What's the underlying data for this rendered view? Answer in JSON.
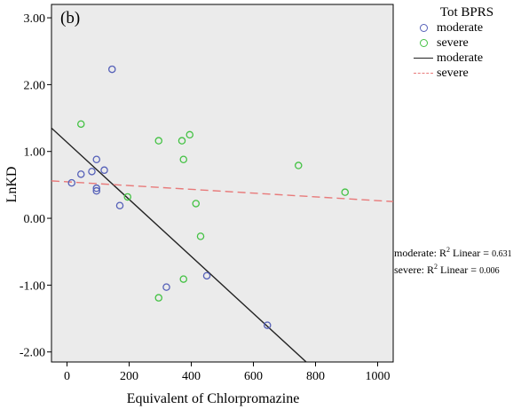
{
  "chart_data": {
    "type": "scatter",
    "panel_label": "(b)",
    "xlabel": "Equivalent of Chlorpromazine",
    "ylabel": "LnKD",
    "xlim": [
      -50,
      1050
    ],
    "ylim": [
      -2.15,
      3.2
    ],
    "x_ticks": [
      0,
      200,
      400,
      600,
      800,
      1000
    ],
    "x_tick_labels": [
      "0",
      "200",
      "400",
      "600",
      "800",
      "1000"
    ],
    "y_ticks": [
      3,
      2,
      1,
      0,
      -1,
      -2
    ],
    "y_tick_labels": [
      "3.00",
      "2.00",
      "1.00",
      "0.00",
      "-1.00",
      "-2.00"
    ],
    "grid": false,
    "legend_title": "Tot BPRS",
    "legend_position": "outside-right",
    "series": [
      {
        "name": "moderate",
        "kind": "points",
        "marker": "circle",
        "color": "#5560b8",
        "points": [
          [
            15,
            0.53
          ],
          [
            45,
            0.66
          ],
          [
            80,
            0.7
          ],
          [
            95,
            0.88
          ],
          [
            95,
            0.45
          ],
          [
            95,
            0.41
          ],
          [
            120,
            0.72
          ],
          [
            145,
            2.23
          ],
          [
            170,
            0.19
          ],
          [
            320,
            -1.03
          ],
          [
            450,
            -0.86
          ],
          [
            645,
            -1.6
          ]
        ]
      },
      {
        "name": "severe",
        "kind": "points",
        "marker": "circle",
        "color": "#44c244",
        "points": [
          [
            45,
            1.41
          ],
          [
            195,
            0.32
          ],
          [
            295,
            1.16
          ],
          [
            295,
            -1.19
          ],
          [
            370,
            1.16
          ],
          [
            375,
            0.88
          ],
          [
            375,
            -0.91
          ],
          [
            395,
            1.25
          ],
          [
            415,
            0.22
          ],
          [
            430,
            -0.27
          ],
          [
            745,
            0.79
          ],
          [
            895,
            0.39
          ]
        ]
      },
      {
        "name": "moderate",
        "kind": "fit-line",
        "style": "solid",
        "color": "#222222",
        "x": [
          -50,
          770
        ],
        "y": [
          1.35,
          -2.15
        ]
      },
      {
        "name": "severe",
        "kind": "fit-line",
        "style": "dashed",
        "color": "#e87a7a",
        "x": [
          -50,
          1050
        ],
        "y": [
          0.56,
          0.25
        ]
      }
    ],
    "annotations": [
      {
        "label": "moderate: R",
        "sup": "2",
        "text": " Linear = ",
        "value": "0.631"
      },
      {
        "label": "severe: R",
        "sup": "2",
        "text": " Linear = ",
        "value": "0.006"
      }
    ]
  },
  "colors": {
    "plot_background": "#ebebeb",
    "moderate_marker": "#5560b8",
    "severe_marker": "#44c244",
    "moderate_line": "#222222",
    "severe_line": "#e87a7a"
  }
}
